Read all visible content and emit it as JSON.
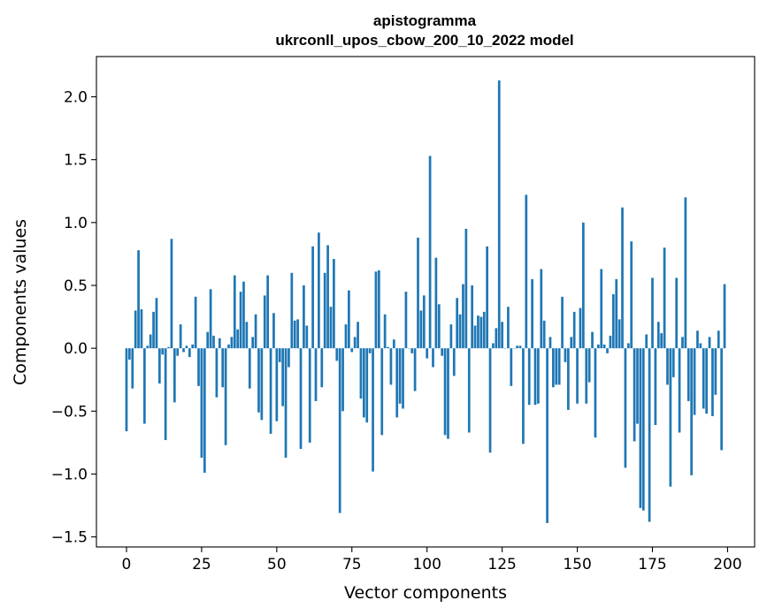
{
  "chart_data": {
    "type": "bar",
    "title_line1": "apistogramma",
    "title_line2": "ukrconll_upos_cbow_200_10_2022 model",
    "xlabel": "Vector components",
    "ylabel": "Components values",
    "xlim": [
      -10,
      209
    ],
    "ylim": [
      -1.58,
      2.32
    ],
    "xticks": [
      0,
      25,
      50,
      75,
      100,
      125,
      150,
      175,
      200
    ],
    "xtick_labels": [
      "0",
      "25",
      "50",
      "75",
      "100",
      "125",
      "150",
      "175",
      "200"
    ],
    "yticks": [
      -1.5,
      -1.0,
      -0.5,
      0.0,
      0.5,
      1.0,
      1.5,
      2.0
    ],
    "ytick_labels": [
      "−1.5",
      "−1.0",
      "−0.5",
      "0.0",
      "0.5",
      "1.0",
      "1.5",
      "2.0"
    ],
    "color": "#1f77b4",
    "values": [
      -0.66,
      -0.09,
      -0.32,
      0.3,
      0.78,
      0.31,
      -0.6,
      0.02,
      0.11,
      0.29,
      0.4,
      -0.28,
      -0.05,
      -0.73,
      0.01,
      0.87,
      -0.43,
      -0.06,
      0.19,
      -0.03,
      0.02,
      -0.07,
      0.03,
      0.41,
      -0.3,
      -0.87,
      -0.99,
      0.13,
      0.47,
      0.1,
      -0.39,
      0.08,
      -0.31,
      -0.77,
      0.03,
      0.09,
      0.58,
      0.15,
      0.45,
      0.53,
      0.21,
      -0.32,
      0.09,
      0.27,
      -0.51,
      -0.57,
      0.42,
      0.58,
      -0.68,
      0.28,
      -0.58,
      -0.11,
      -0.46,
      -0.87,
      -0.15,
      0.6,
      0.22,
      0.23,
      -0.8,
      0.5,
      0.18,
      -0.75,
      0.81,
      -0.42,
      0.92,
      -0.31,
      0.6,
      0.82,
      0.33,
      0.71,
      -0.1,
      -1.31,
      -0.5,
      0.19,
      0.46,
      -0.03,
      0.09,
      0.21,
      -0.4,
      -0.55,
      -0.59,
      -0.04,
      -0.98,
      0.61,
      0.62,
      -0.69,
      0.27,
      0.01,
      -0.29,
      0.07,
      -0.55,
      -0.44,
      -0.48,
      0.45,
      0.0,
      -0.04,
      -0.34,
      0.88,
      0.3,
      0.42,
      -0.08,
      1.53,
      -0.15,
      0.72,
      0.35,
      -0.06,
      -0.69,
      -0.72,
      0.19,
      -0.22,
      0.4,
      0.27,
      0.51,
      0.95,
      -0.67,
      0.5,
      0.18,
      0.26,
      0.25,
      0.29,
      0.81,
      -0.83,
      0.04,
      0.16,
      2.13,
      0.21,
      0.0,
      0.33,
      -0.3,
      0.0,
      0.02,
      0.02,
      -0.76,
      1.22,
      -0.45,
      0.55,
      -0.45,
      -0.44,
      0.63,
      0.22,
      -1.39,
      0.09,
      -0.31,
      -0.29,
      -0.29,
      0.41,
      -0.11,
      -0.49,
      0.09,
      0.29,
      -0.44,
      0.32,
      1.0,
      -0.44,
      -0.27,
      0.13,
      -0.71,
      0.03,
      0.63,
      0.03,
      -0.04,
      0.1,
      0.43,
      0.55,
      0.23,
      1.12,
      -0.95,
      0.04,
      0.85,
      -0.74,
      -0.6,
      -1.27,
      -1.29,
      0.11,
      -1.38,
      0.56,
      -0.61,
      0.21,
      0.12,
      0.8,
      -0.29,
      -1.1,
      -0.23,
      0.56,
      -0.67,
      0.09,
      1.2,
      -0.42,
      -1.01,
      -0.53,
      0.14,
      0.04,
      -0.48,
      -0.52,
      0.09,
      -0.54,
      -0.37,
      0.14,
      -0.81,
      0.51
    ]
  }
}
